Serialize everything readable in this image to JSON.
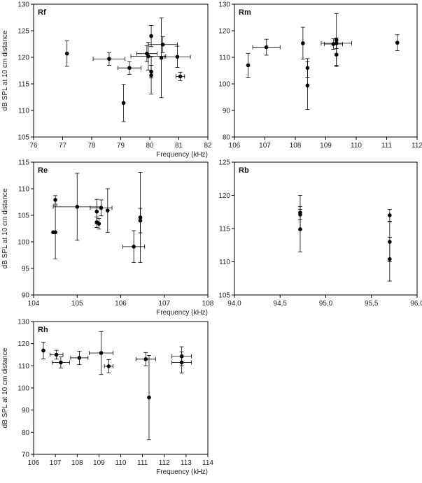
{
  "chart_data": [
    {
      "type": "scatter",
      "title": "Rf",
      "xlabel": "Frequency (kHz)",
      "ylabel": "dB SPL at 10 cm distance",
      "xlim": [
        76,
        82
      ],
      "ylim": [
        105,
        130
      ],
      "xticks": [
        "76",
        "77",
        "78",
        "79",
        "80",
        "81",
        "82"
      ],
      "yticks": [
        "105",
        "110",
        "115",
        "120",
        "125",
        "130"
      ],
      "points": [
        {
          "x": 77.15,
          "y": 120.7,
          "xerr": 0,
          "yerr": 2.4
        },
        {
          "x": 78.6,
          "y": 119.7,
          "xerr": 0.55,
          "yerr": 1.2
        },
        {
          "x": 79.1,
          "y": 111.4,
          "xerr": 0,
          "yerr": 3.5
        },
        {
          "x": 79.3,
          "y": 118.0,
          "xerr": 0.4,
          "yerr": 1.2
        },
        {
          "x": 79.9,
          "y": 120.7,
          "xerr": 0.35,
          "yerr": 1.5
        },
        {
          "x": 79.95,
          "y": 120.2,
          "xerr": 0.6,
          "yerr": 2.6
        },
        {
          "x": 80.05,
          "y": 124.0,
          "xerr": 0,
          "yerr": 2.0
        },
        {
          "x": 80.05,
          "y": 117.3,
          "xerr": 0,
          "yerr": 1.2
        },
        {
          "x": 80.05,
          "y": 116.6,
          "xerr": 0,
          "yerr": 3.5
        },
        {
          "x": 80.4,
          "y": 119.9,
          "xerr": 0,
          "yerr": 7.5
        },
        {
          "x": 80.45,
          "y": 122.4,
          "xerr": 0.5,
          "yerr": 1.5
        },
        {
          "x": 80.95,
          "y": 120.1,
          "xerr": 0.45,
          "yerr": 2.0
        },
        {
          "x": 81.05,
          "y": 116.4,
          "xerr": 0.15,
          "yerr": 0.8
        }
      ]
    },
    {
      "type": "scatter",
      "title": "Rm",
      "xlabel": "",
      "ylabel": "",
      "xlim": [
        106,
        112
      ],
      "ylim": [
        80,
        130
      ],
      "xticks": [
        "106",
        "107",
        "108",
        "109",
        "110",
        "111",
        "112"
      ],
      "yticks": [
        "80",
        "90",
        "100",
        "110",
        "120",
        "130"
      ],
      "points": [
        {
          "x": 106.45,
          "y": 107.0,
          "xerr": 0,
          "yerr": 4.5
        },
        {
          "x": 107.05,
          "y": 113.8,
          "xerr": 0.45,
          "yerr": 3.0
        },
        {
          "x": 108.25,
          "y": 115.3,
          "xerr": 0,
          "yerr": 6.0
        },
        {
          "x": 108.4,
          "y": 106.0,
          "xerr": 0,
          "yerr": 3.5
        },
        {
          "x": 108.4,
          "y": 99.4,
          "xerr": 0,
          "yerr": 9.0
        },
        {
          "x": 109.25,
          "y": 115.0,
          "xerr": 0.3,
          "yerr": 2.0
        },
        {
          "x": 109.35,
          "y": 116.5,
          "xerr": 0,
          "yerr": 10.0
        },
        {
          "x": 109.35,
          "y": 115.3,
          "xerr": 0.5,
          "yerr": 2.0
        },
        {
          "x": 109.35,
          "y": 111.0,
          "xerr": 0,
          "yerr": 4.0
        },
        {
          "x": 111.35,
          "y": 115.5,
          "xerr": 0,
          "yerr": 3.0
        }
      ]
    },
    {
      "type": "scatter",
      "title": "Re",
      "xlabel": "Frequency (kHz)",
      "ylabel": "dB SPL at 10 cm distance",
      "xlim": [
        104,
        108
      ],
      "ylim": [
        90,
        115
      ],
      "xticks": [
        "104",
        "105",
        "106",
        "107",
        "108"
      ],
      "yticks": [
        "90",
        "95",
        "100",
        "105",
        "110",
        "115"
      ],
      "points": [
        {
          "x": 104.5,
          "y": 107.9,
          "xerr": 0,
          "yerr": 0.8
        },
        {
          "x": 104.5,
          "y": 101.8,
          "xerr": 0,
          "yerr": 5.0
        },
        {
          "x": 104.45,
          "y": 101.8,
          "xerr": 0,
          "yerr": 0
        },
        {
          "x": 105.0,
          "y": 106.6,
          "xerr": 0.55,
          "yerr": 6.3
        },
        {
          "x": 105.45,
          "y": 105.7,
          "xerr": 0,
          "yerr": 2.3
        },
        {
          "x": 105.45,
          "y": 103.7,
          "xerr": 0,
          "yerr": 1.0
        },
        {
          "x": 105.5,
          "y": 103.4,
          "xerr": 0,
          "yerr": 1.0
        },
        {
          "x": 105.55,
          "y": 106.4,
          "xerr": 0.25,
          "yerr": 1.5
        },
        {
          "x": 105.7,
          "y": 105.9,
          "xerr": 0,
          "yerr": 4.1
        },
        {
          "x": 106.3,
          "y": 99.1,
          "xerr": 0.25,
          "yerr": 3.0
        },
        {
          "x": 106.45,
          "y": 104.6,
          "xerr": 0,
          "yerr": 8.5
        },
        {
          "x": 106.45,
          "y": 104.0,
          "xerr": 0,
          "yerr": 2.3
        }
      ]
    },
    {
      "type": "scatter",
      "title": "Rb",
      "xlabel": "",
      "ylabel": "",
      "xlim": [
        94.0,
        96.0
      ],
      "ylim": [
        105,
        125
      ],
      "xticks": [
        "94,0",
        "94,5",
        "95,0",
        "95,5",
        "96,0"
      ],
      "yticks": [
        "105",
        "110",
        "115",
        "120",
        "125"
      ],
      "points": [
        {
          "x": 94.72,
          "y": 117.4,
          "xerr": 0,
          "yerr": 2.6
        },
        {
          "x": 94.72,
          "y": 117.1,
          "xerr": 0,
          "yerr": 0.8
        },
        {
          "x": 94.72,
          "y": 114.9,
          "xerr": 0,
          "yerr": 3.4
        },
        {
          "x": 95.7,
          "y": 117.0,
          "xerr": 0,
          "yerr": 0.9
        },
        {
          "x": 95.7,
          "y": 113.0,
          "xerr": 0,
          "yerr": 3.0
        },
        {
          "x": 95.7,
          "y": 110.4,
          "xerr": 0,
          "yerr": 3.3
        }
      ]
    },
    {
      "type": "scatter",
      "title": "Rh",
      "xlabel": "Frequency (kHz)",
      "ylabel": "dB SPL at 10 cm distance",
      "xlim": [
        106,
        114
      ],
      "ylim": [
        70,
        130
      ],
      "xticks": [
        "106",
        "107",
        "108",
        "109",
        "110",
        "111",
        "112",
        "113",
        "114"
      ],
      "yticks": [
        "70",
        "80",
        "90",
        "100",
        "110",
        "120",
        "130"
      ],
      "points": [
        {
          "x": 106.45,
          "y": 116.9,
          "xerr": 0,
          "yerr": 3.8
        },
        {
          "x": 107.05,
          "y": 115.0,
          "xerr": 0.3,
          "yerr": 2.0
        },
        {
          "x": 107.25,
          "y": 111.5,
          "xerr": 0.4,
          "yerr": 2.5
        },
        {
          "x": 108.1,
          "y": 113.6,
          "xerr": 0.4,
          "yerr": 3.0
        },
        {
          "x": 109.1,
          "y": 115.8,
          "xerr": 0.55,
          "yerr": 9.7
        },
        {
          "x": 109.45,
          "y": 109.8,
          "xerr": 0.2,
          "yerr": 3.0
        },
        {
          "x": 111.15,
          "y": 113.0,
          "xerr": 0.45,
          "yerr": 3.0
        },
        {
          "x": 111.3,
          "y": 95.7,
          "xerr": 0,
          "yerr": 19.0
        },
        {
          "x": 112.8,
          "y": 114.3,
          "xerr": 0.45,
          "yerr": 4.3
        },
        {
          "x": 112.8,
          "y": 111.5,
          "xerr": 0.45,
          "yerr": 4.8
        }
      ]
    }
  ]
}
